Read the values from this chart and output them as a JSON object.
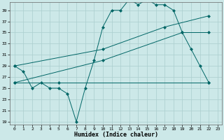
{
  "xlabel": "Humidex (Indice chaleur)",
  "bg_color": "#cce8e8",
  "grid_color": "#aacece",
  "line_color": "#006666",
  "xlim": [
    -0.5,
    23.5
  ],
  "ylim": [
    18.5,
    40.5
  ],
  "yticks": [
    19,
    21,
    23,
    25,
    27,
    29,
    31,
    33,
    35,
    37,
    39
  ],
  "xticks": [
    0,
    1,
    2,
    3,
    4,
    5,
    6,
    7,
    8,
    9,
    10,
    11,
    12,
    13,
    14,
    15,
    16,
    17,
    18,
    19,
    20,
    21,
    22,
    23
  ],
  "series": [
    {
      "x": [
        0,
        1,
        2,
        3,
        4,
        5,
        6,
        7,
        8,
        9,
        10,
        11,
        12,
        13,
        14,
        15,
        16,
        17,
        18,
        19,
        20,
        21,
        22
      ],
      "y": [
        29,
        28,
        25,
        26,
        25,
        25,
        24,
        19,
        25,
        30,
        36,
        39,
        39,
        41,
        40,
        41,
        40,
        40,
        39,
        35,
        32,
        29,
        26
      ]
    },
    {
      "x": [
        0,
        5,
        22
      ],
      "y": [
        26,
        26,
        26
      ]
    },
    {
      "x": [
        0,
        10,
        17,
        22
      ],
      "y": [
        29,
        32,
        36,
        38
      ]
    },
    {
      "x": [
        0,
        10,
        19,
        22
      ],
      "y": [
        26,
        30,
        35,
        35
      ]
    }
  ]
}
